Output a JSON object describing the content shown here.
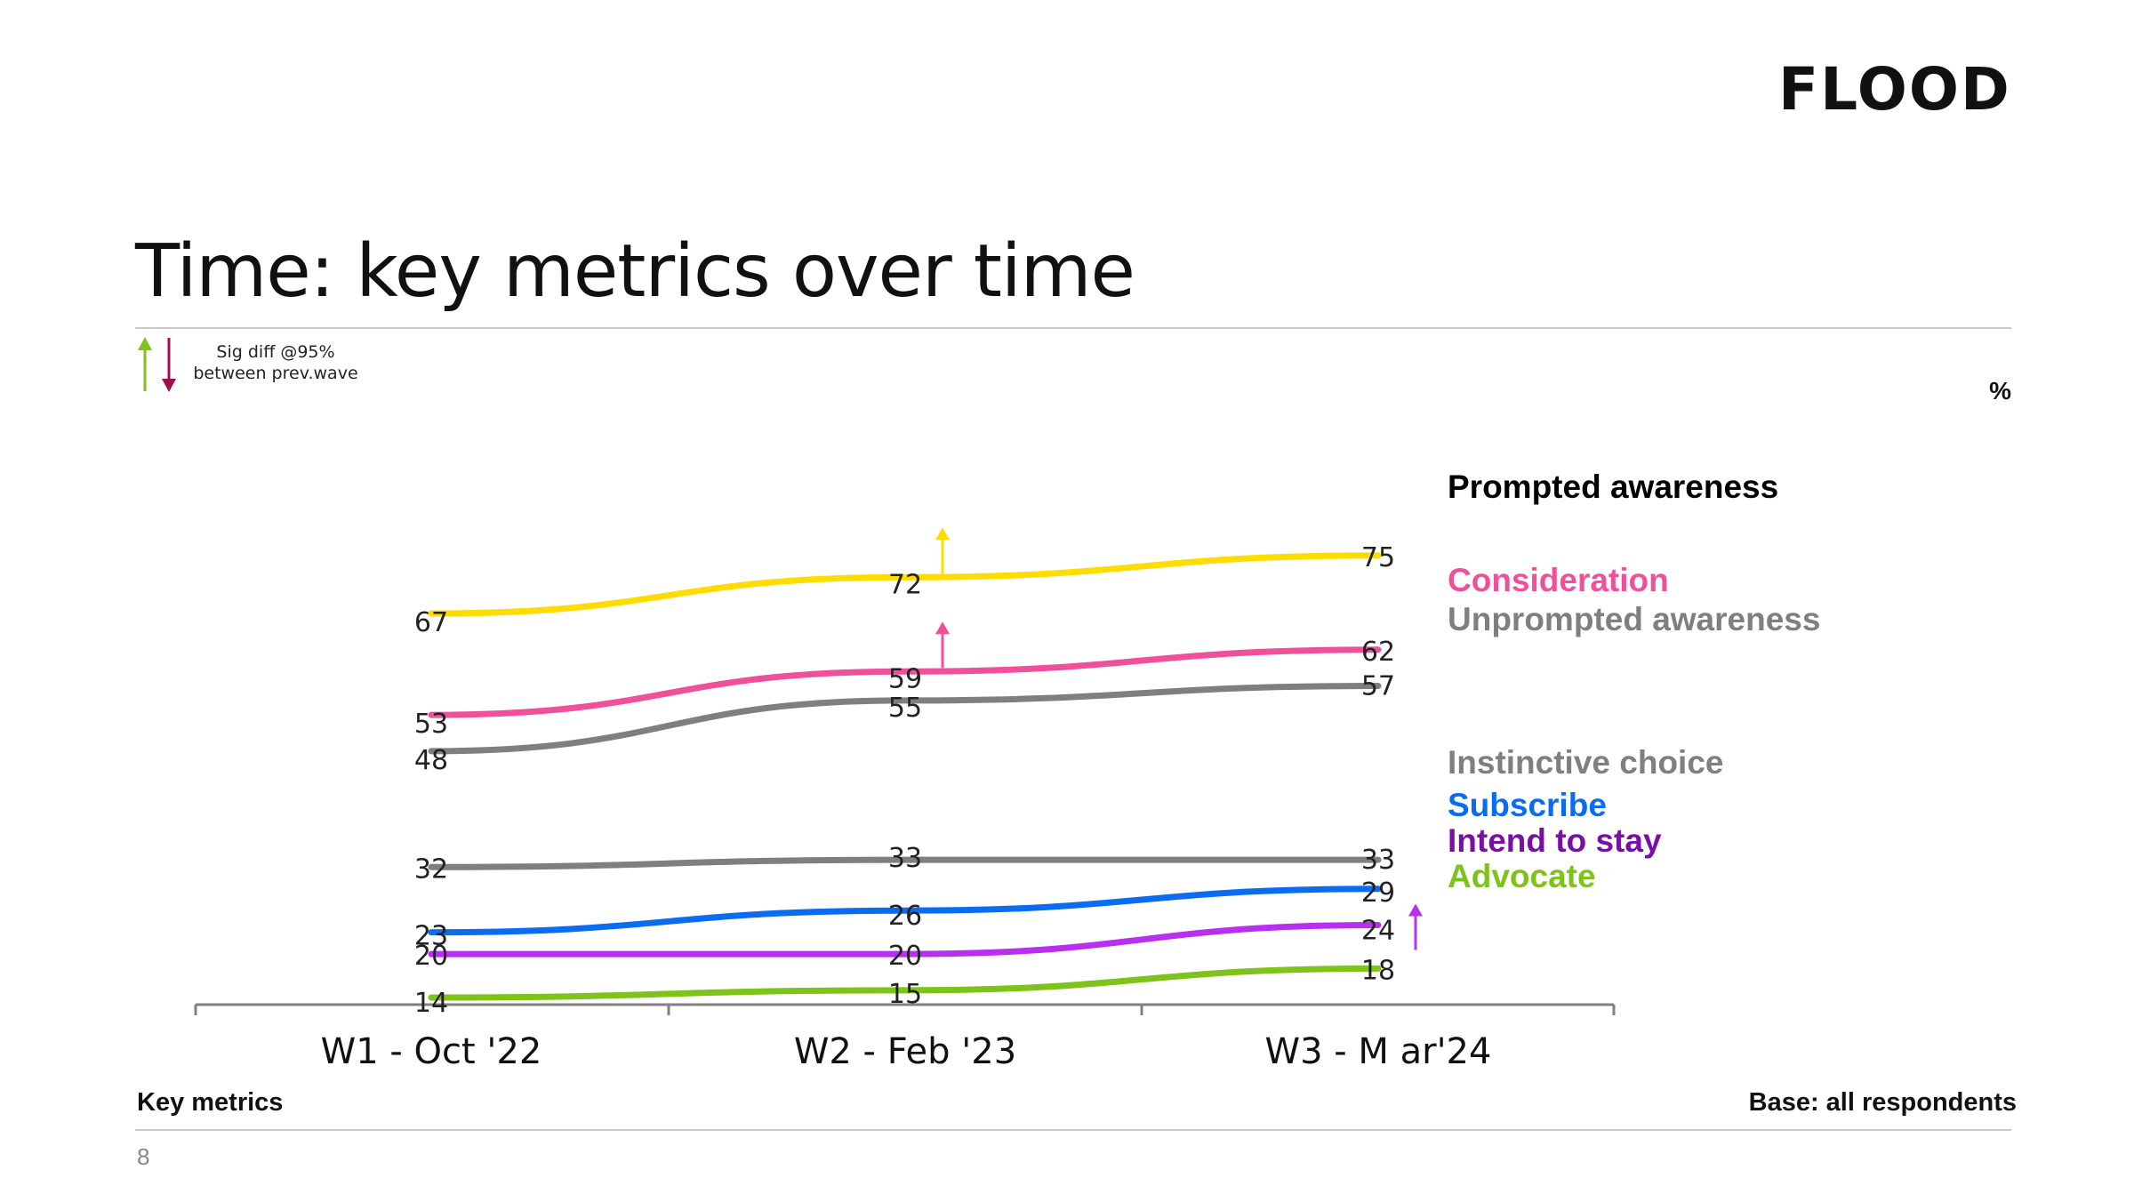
{
  "header": {
    "logo": "FLOOD",
    "title": "Time: key metrics over time",
    "sig_line1": "Sig diff @95%",
    "sig_line2": "between prev.wave",
    "sig_up_color": "#7dc31a",
    "sig_down_color": "#a0104f",
    "unit": "%"
  },
  "footer": {
    "left": "Key metrics",
    "right": "Base: all respondents",
    "page": "8"
  },
  "chart_data": {
    "type": "line",
    "categories": [
      "W1 - Oct '22",
      "W2 - Feb '23",
      "W3 - M ar'24"
    ],
    "ylim": [
      0,
      100
    ],
    "grid": false,
    "legend": "right",
    "series": [
      {
        "name": "Prompted awareness",
        "values": [
          67,
          72,
          75
        ],
        "color": "#ffdc00",
        "label_color": "#000000",
        "sig_up": [
          false,
          true,
          false
        ]
      },
      {
        "name": "Consideration",
        "values": [
          53,
          59,
          62
        ],
        "color": "#f0509a",
        "label_color": "#f0509a",
        "sig_up": [
          false,
          true,
          false
        ]
      },
      {
        "name": "Unprompted awareness",
        "values": [
          48,
          55,
          57
        ],
        "color": "#7f7f7f",
        "label_color": "#7f7f7f",
        "sig_up": [
          false,
          false,
          false
        ]
      },
      {
        "name": "Instinctive choice",
        "values": [
          32,
          33,
          33
        ],
        "color": "#7f7f7f",
        "label_color": "#7f7f7f",
        "sig_up": [
          false,
          false,
          false
        ]
      },
      {
        "name": "Subscribe",
        "values": [
          23,
          26,
          29
        ],
        "color": "#0a6cf0",
        "label_color": "#0a6cf0",
        "sig_up": [
          false,
          false,
          false
        ]
      },
      {
        "name": "Intend to stay",
        "values": [
          20,
          20,
          24
        ],
        "color": "#b92ff0",
        "label_color": "#7a0fa8",
        "sig_up": [
          false,
          false,
          true
        ]
      },
      {
        "name": "Advocate",
        "values": [
          14,
          15,
          18
        ],
        "color": "#7dc31a",
        "label_color": "#7dc31a",
        "sig_up": [
          false,
          false,
          false
        ]
      }
    ]
  }
}
